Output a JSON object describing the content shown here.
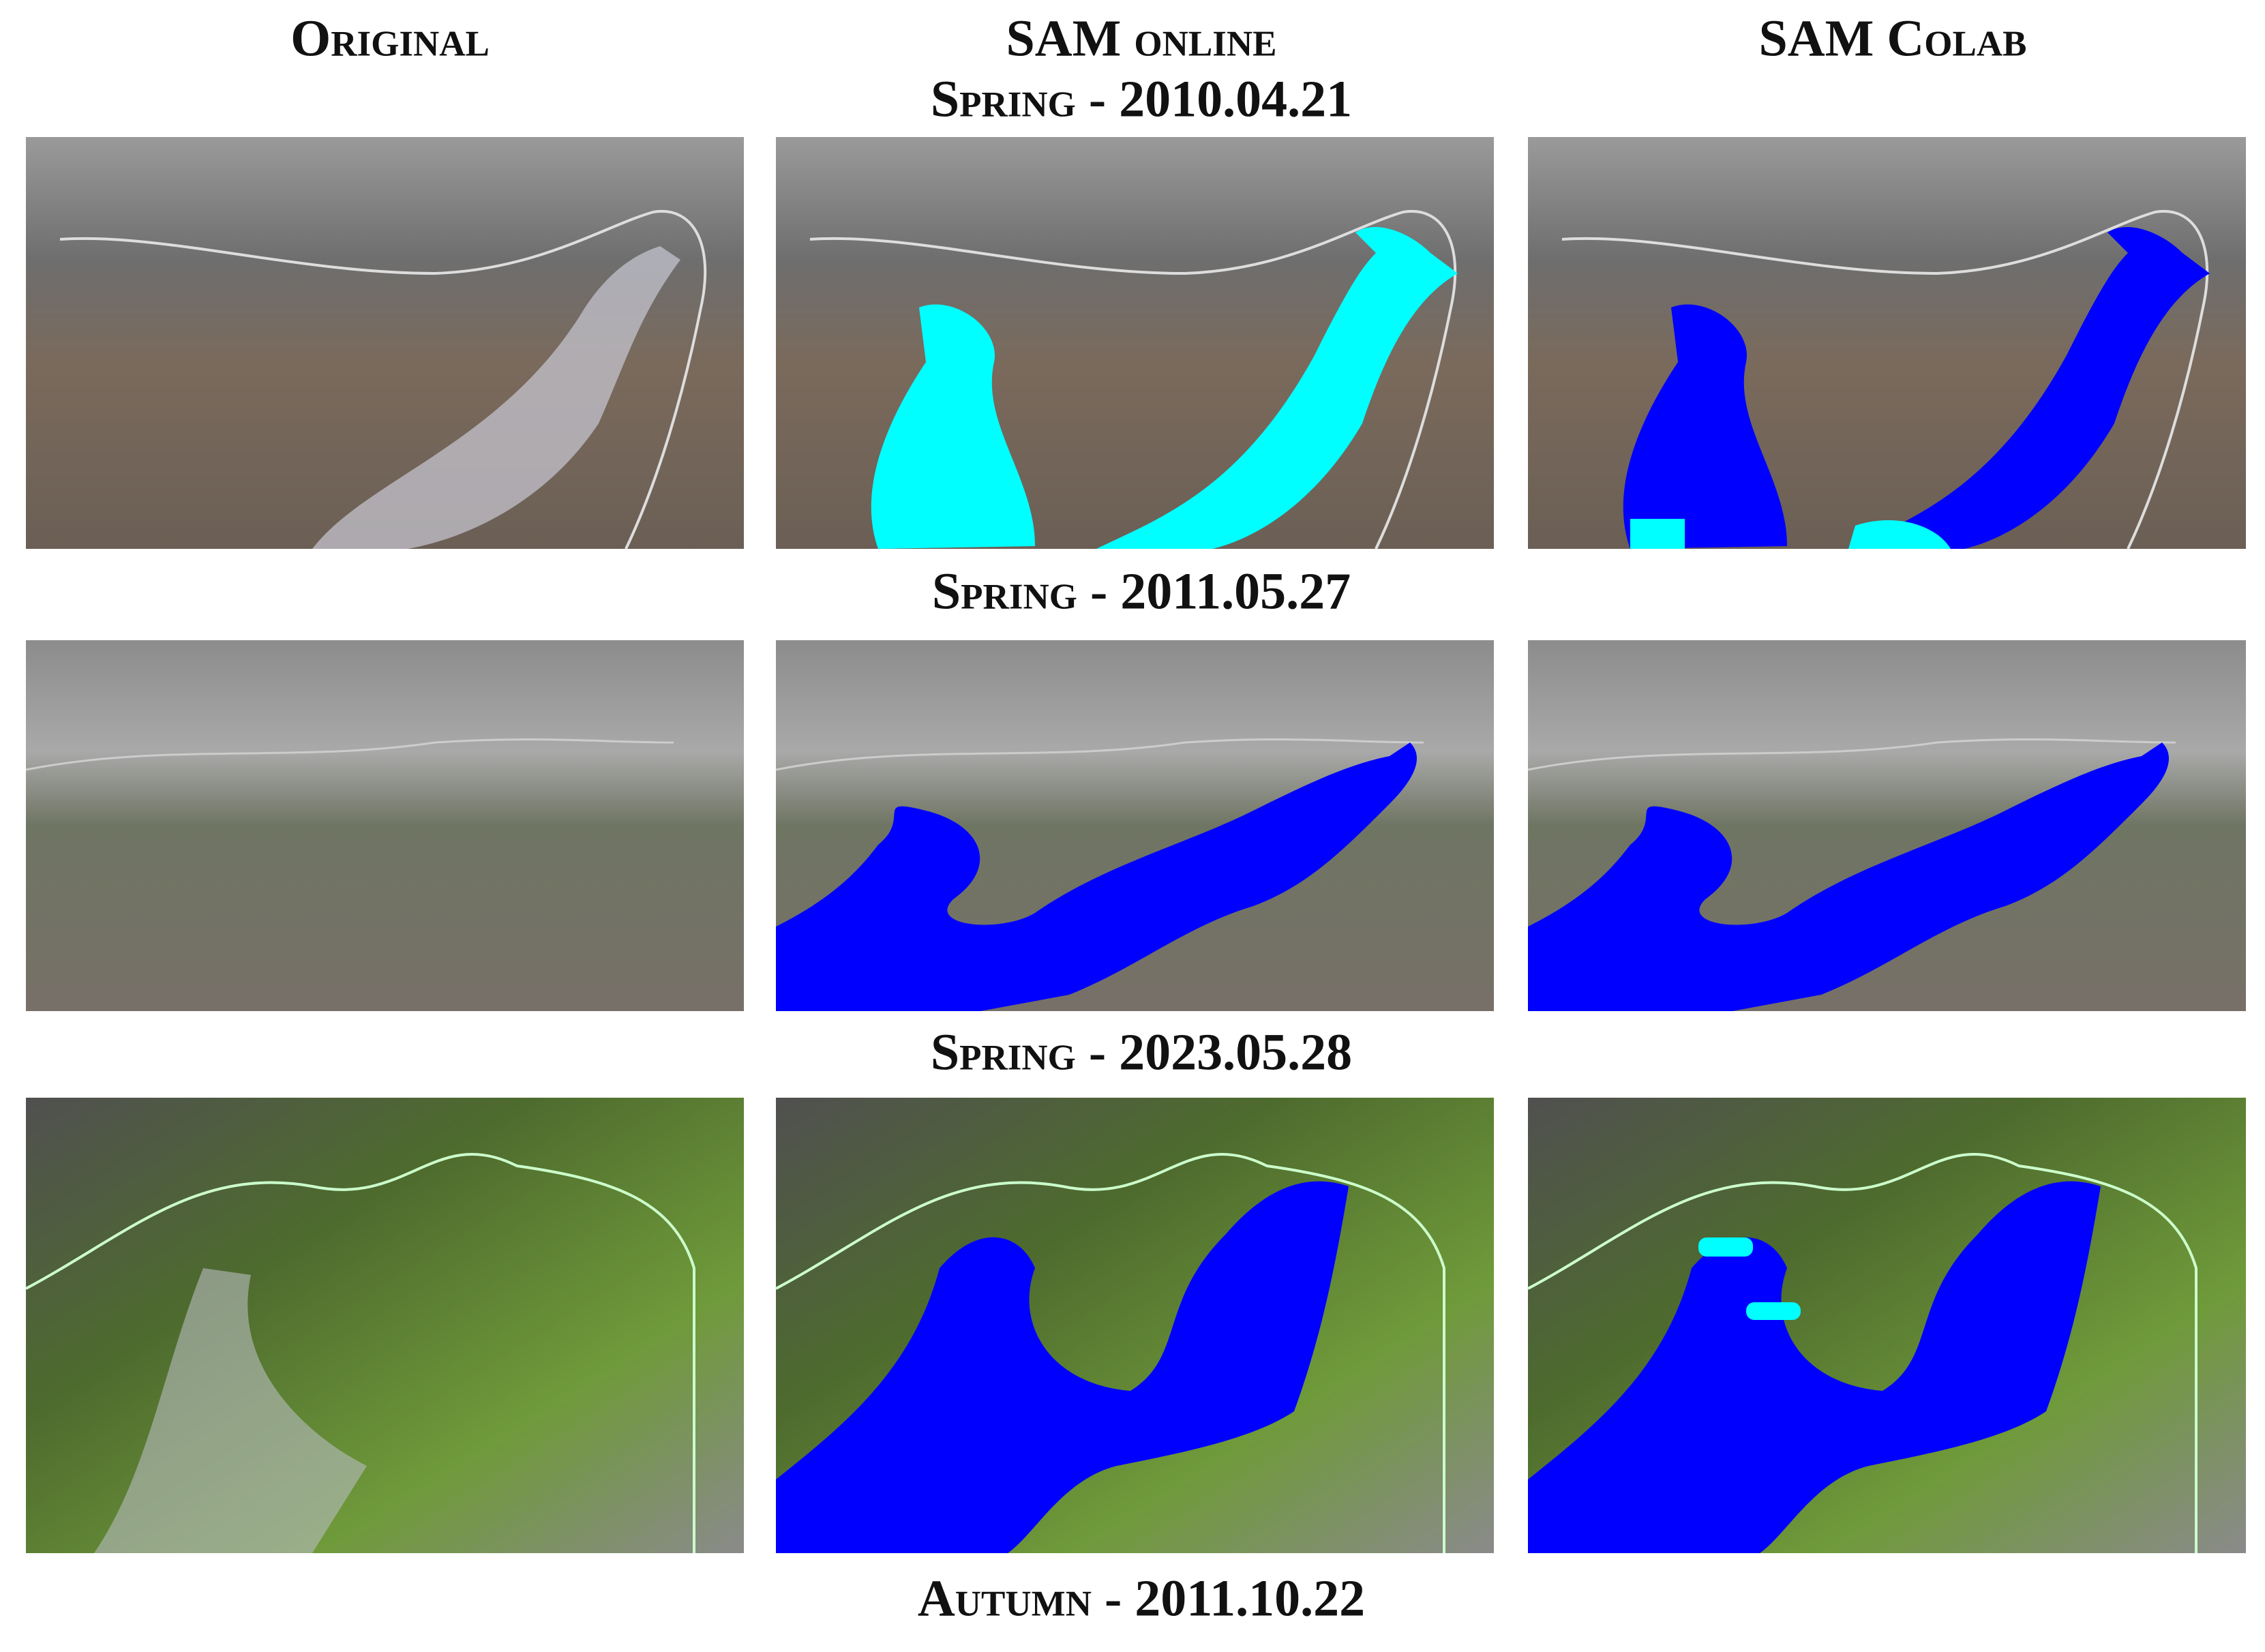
{
  "column_headers": [
    "Original",
    "SAM online",
    "SAM Colab"
  ],
  "section_labels": [
    "Spring - 2010.04.21",
    "Spring - 2011.05.27",
    "Spring - 2023.05.28",
    "Autumn - 2011.10.22"
  ]
}
